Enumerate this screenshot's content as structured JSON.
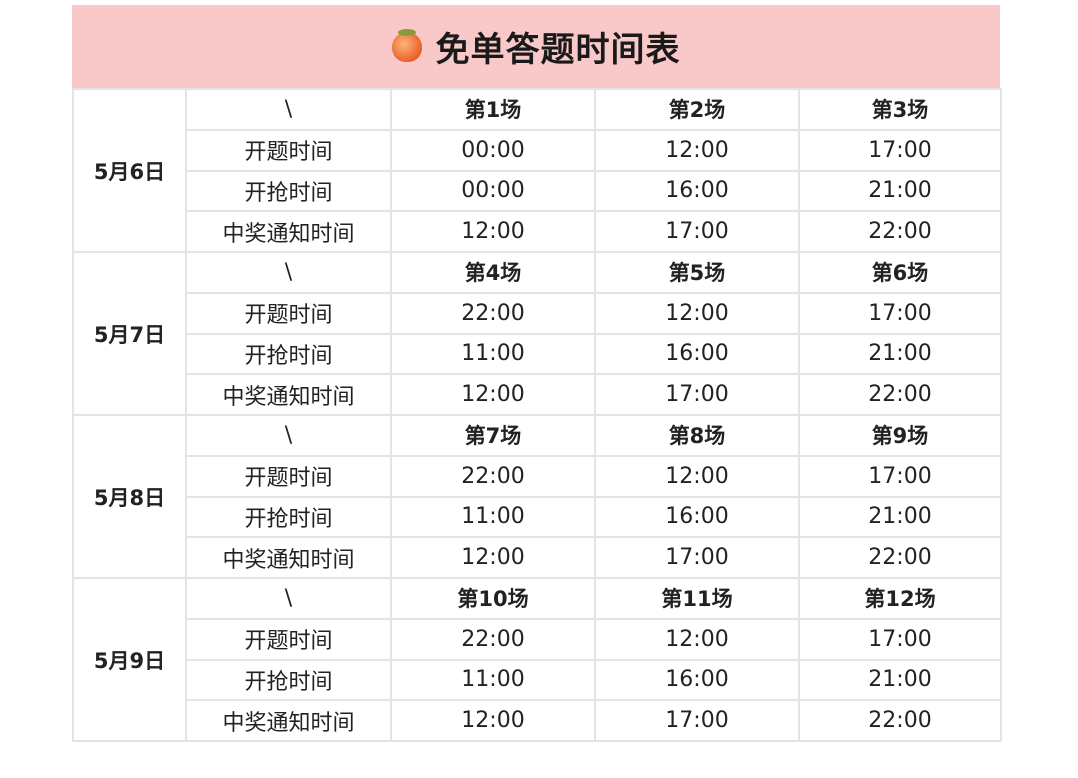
{
  "header": {
    "icon": "peach-emoji-icon",
    "title": "免单答题时间表"
  },
  "row_labels": {
    "header": "\\",
    "open_question": "开题时间",
    "open_grab": "开抢时间",
    "notify": "中奖通知时间"
  },
  "days": [
    {
      "date": "5月6日",
      "sessions": [
        "第1场",
        "第2场",
        "第3场"
      ],
      "open_question": [
        "00:00",
        "12:00",
        "17:00"
      ],
      "open_grab": [
        "00:00",
        "16:00",
        "21:00"
      ],
      "notify": [
        "12:00",
        "17:00",
        "22:00"
      ]
    },
    {
      "date": "5月7日",
      "sessions": [
        "第4场",
        "第5场",
        "第6场"
      ],
      "open_question": [
        "22:00",
        "12:00",
        "17:00"
      ],
      "open_grab": [
        "11:00",
        "16:00",
        "21:00"
      ],
      "notify": [
        "12:00",
        "17:00",
        "22:00"
      ]
    },
    {
      "date": "5月8日",
      "sessions": [
        "第7场",
        "第8场",
        "第9场"
      ],
      "open_question": [
        "22:00",
        "12:00",
        "17:00"
      ],
      "open_grab": [
        "11:00",
        "16:00",
        "21:00"
      ],
      "notify": [
        "12:00",
        "17:00",
        "22:00"
      ]
    },
    {
      "date": "5月9日",
      "sessions": [
        "第10场",
        "第11场",
        "第12场"
      ],
      "open_question": [
        "22:00",
        "12:00",
        "17:00"
      ],
      "open_grab": [
        "11:00",
        "16:00",
        "21:00"
      ],
      "notify": [
        "12:00",
        "17:00",
        "22:00"
      ]
    }
  ]
}
